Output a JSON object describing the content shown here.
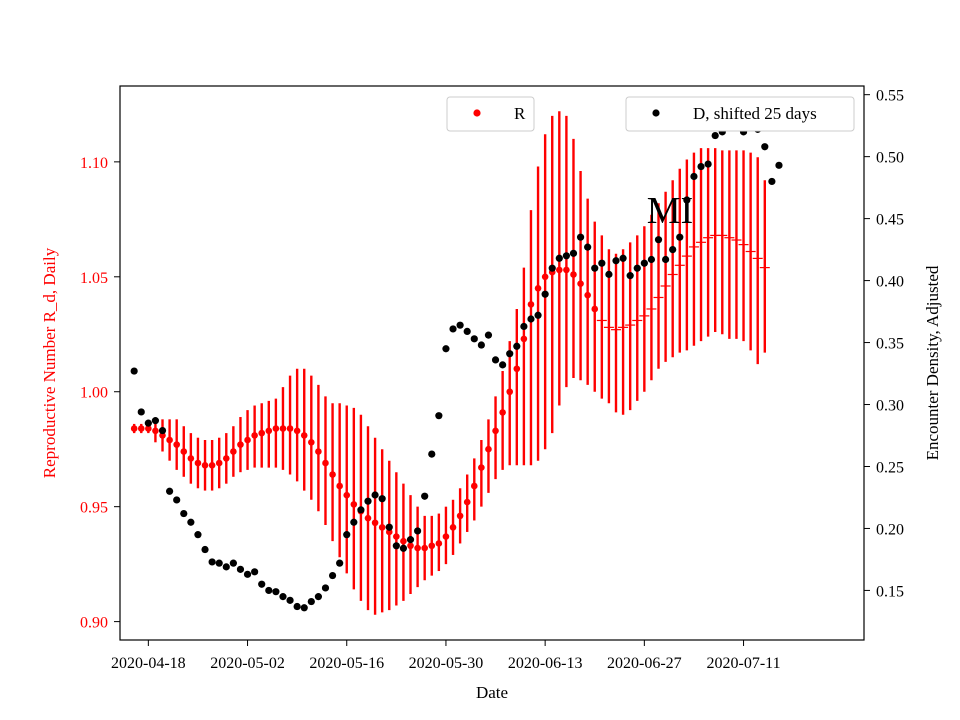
{
  "chart_data": {
    "type": "scatter",
    "title": "",
    "annotation": "MI",
    "xlabel": "Date",
    "ylabel_left": "Reproductive Number R_d, Daily",
    "ylabel_right": "Encounter Density, Adjusted",
    "x_start_date": "2020-04-16",
    "x_end_date": "2020-07-24",
    "xlim": [
      "2020-04-14",
      "2020-07-28"
    ],
    "x_tick_labels": [
      "2020-04-18",
      "2020-05-02",
      "2020-05-16",
      "2020-05-30",
      "2020-06-13",
      "2020-06-27",
      "2020-07-11"
    ],
    "y_left": {
      "ylim": [
        0.892,
        1.133
      ],
      "ticks": [
        0.9,
        0.95,
        1.0,
        1.05,
        1.1
      ],
      "tick_labels": [
        "0.90",
        "0.95",
        "1.00",
        "1.05",
        "1.10"
      ],
      "color": "#ff0000"
    },
    "y_right": {
      "ylim": [
        0.11,
        0.557
      ],
      "ticks": [
        0.15,
        0.2,
        0.25,
        0.3,
        0.35,
        0.4,
        0.45,
        0.5,
        0.55
      ],
      "tick_labels": [
        "0.15",
        "0.20",
        "0.25",
        "0.30",
        "0.35",
        "0.40",
        "0.45",
        "0.50",
        "0.55"
      ],
      "color": "#000000"
    },
    "legend": [
      {
        "label": "R",
        "color": "#ff0000",
        "placement": "top-center"
      },
      {
        "label": "D, shifted 25 days",
        "color": "#000000",
        "placement": "top-right"
      }
    ],
    "series": [
      {
        "name": "R",
        "axis": "left",
        "color": "#ff0000",
        "values": [
          0.984,
          0.984,
          0.984,
          0.983,
          0.981,
          0.979,
          0.977,
          0.974,
          0.971,
          0.969,
          0.968,
          0.968,
          0.969,
          0.971,
          0.974,
          0.977,
          0.979,
          0.981,
          0.982,
          0.983,
          0.984,
          0.984,
          0.984,
          0.983,
          0.981,
          0.978,
          0.974,
          0.969,
          0.964,
          0.959,
          0.955,
          0.951,
          0.948,
          0.945,
          0.943,
          0.941,
          0.939,
          0.937,
          0.935,
          0.933,
          0.932,
          0.932,
          0.933,
          0.934,
          0.937,
          0.941,
          0.946,
          0.952,
          0.959,
          0.967,
          0.975,
          0.983,
          0.991,
          1.0,
          1.01,
          1.023,
          1.038,
          1.045,
          1.05,
          1.052,
          1.053,
          1.053,
          1.051,
          1.047,
          1.042,
          1.036,
          1.031,
          1.028,
          1.027,
          1.028,
          1.029,
          1.031,
          1.033,
          1.036,
          1.041,
          1.046,
          1.051,
          1.055,
          1.059,
          1.063,
          1.065,
          1.067,
          1.068,
          1.068,
          1.067,
          1.066,
          1.064,
          1.061,
          1.058,
          1.054
        ],
        "lower": [
          0.982,
          0.982,
          0.982,
          0.978,
          0.974,
          0.97,
          0.966,
          0.963,
          0.96,
          0.958,
          0.957,
          0.957,
          0.958,
          0.96,
          0.963,
          0.965,
          0.966,
          0.967,
          0.967,
          0.967,
          0.967,
          0.966,
          0.964,
          0.961,
          0.957,
          0.953,
          0.948,
          0.942,
          0.935,
          0.928,
          0.921,
          0.914,
          0.909,
          0.905,
          0.903,
          0.904,
          0.905,
          0.907,
          0.909,
          0.912,
          0.915,
          0.918,
          0.92,
          0.922,
          0.925,
          0.929,
          0.934,
          0.939,
          0.944,
          0.95,
          0.956,
          0.962,
          0.966,
          0.968,
          0.968,
          0.968,
          0.968,
          0.97,
          0.975,
          0.982,
          0.994,
          1.002,
          1.006,
          1.005,
          1.003,
          1.0,
          0.997,
          0.995,
          0.991,
          0.99,
          0.992,
          0.996,
          1.0,
          1.005,
          1.01,
          1.013,
          1.015,
          1.017,
          1.018,
          1.02,
          1.022,
          1.024,
          1.026,
          1.025,
          1.023,
          1.023,
          1.022,
          1.018,
          1.012,
          1.017
        ],
        "upper": [
          0.986,
          0.986,
          0.986,
          0.988,
          0.988,
          0.988,
          0.988,
          0.985,
          0.982,
          0.98,
          0.979,
          0.979,
          0.98,
          0.982,
          0.985,
          0.989,
          0.992,
          0.994,
          0.995,
          0.996,
          0.997,
          1.002,
          1.007,
          1.01,
          1.01,
          1.007,
          1.003,
          0.998,
          0.995,
          0.995,
          0.994,
          0.993,
          0.99,
          0.985,
          0.98,
          0.975,
          0.97,
          0.965,
          0.96,
          0.955,
          0.95,
          0.946,
          0.946,
          0.947,
          0.95,
          0.953,
          0.958,
          0.964,
          0.971,
          0.979,
          0.988,
          0.998,
          1.009,
          1.022,
          1.036,
          1.054,
          1.079,
          1.098,
          1.112,
          1.12,
          1.122,
          1.12,
          1.11,
          1.096,
          1.084,
          1.074,
          1.068,
          1.062,
          1.06,
          1.062,
          1.065,
          1.068,
          1.072,
          1.077,
          1.082,
          1.087,
          1.092,
          1.097,
          1.101,
          1.104,
          1.106,
          1.106,
          1.106,
          1.105,
          1.105,
          1.105,
          1.105,
          1.104,
          1.102,
          1.092
        ]
      },
      {
        "name": "D, shifted 25 days",
        "axis": "right",
        "color": "#000000",
        "values": [
          0.327,
          0.294,
          0.285,
          0.287,
          0.279,
          0.23,
          0.223,
          0.212,
          0.205,
          0.195,
          0.183,
          0.173,
          0.172,
          0.169,
          0.172,
          0.167,
          0.163,
          0.165,
          0.155,
          0.15,
          0.149,
          0.145,
          0.142,
          0.137,
          0.136,
          0.141,
          0.145,
          0.152,
          0.162,
          0.172,
          0.195,
          0.205,
          0.215,
          0.222,
          0.227,
          0.224,
          0.201,
          0.186,
          0.184,
          0.191,
          0.198,
          0.226,
          0.26,
          0.291,
          0.345,
          0.361,
          0.364,
          0.359,
          0.353,
          0.348,
          0.356,
          0.336,
          0.332,
          0.341,
          0.347,
          0.363,
          0.369,
          0.372,
          0.389,
          0.41,
          0.418,
          0.42,
          0.422,
          0.435,
          0.427,
          0.41,
          0.414,
          0.405,
          0.416,
          0.418,
          0.404,
          0.41,
          0.414,
          0.417,
          0.433,
          0.417,
          0.425,
          0.435,
          0.465,
          0.484,
          0.492,
          0.494,
          0.517,
          0.52,
          0.527,
          0.525,
          0.52,
          0.525,
          0.522,
          0.508,
          0.48,
          0.493
        ]
      }
    ]
  }
}
